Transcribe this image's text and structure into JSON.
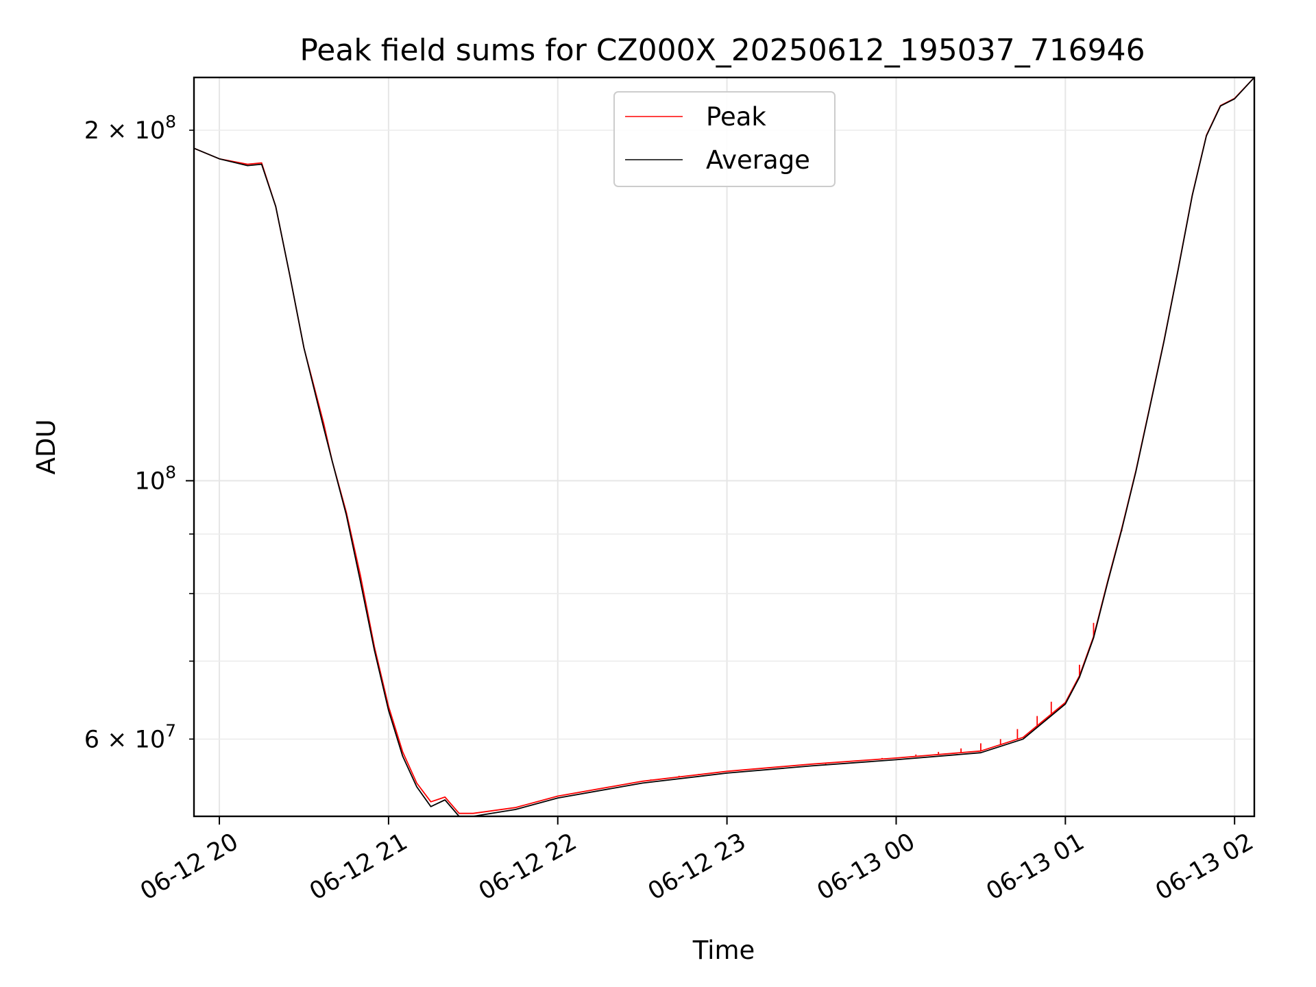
{
  "chart_data": {
    "type": "line",
    "title": "Peak field sums for CZ000X_20250612_195037_716946",
    "xlabel": "Time",
    "ylabel": "ADU",
    "yscale": "log",
    "grid": true,
    "legend_position": "top-center",
    "xlim": [
      "2025-06-12 19:51",
      "2025-06-13 02:07"
    ],
    "ylim": [
      51500000,
      222000000
    ],
    "x_ticks": [
      "06-12 20",
      "06-12 21",
      "06-12 22",
      "06-12 23",
      "06-13 00",
      "06-13 01",
      "06-13 02"
    ],
    "y_major_ticks": [
      {
        "value": 100000000,
        "label_base": "10",
        "label_exp": "8"
      }
    ],
    "y_minor_ticks": [
      {
        "value": 60000000,
        "label_base": "6 × 10",
        "label_exp": "7"
      },
      {
        "value": 200000000,
        "label_base": "2 × 10",
        "label_exp": "8"
      }
    ],
    "y_unlabeled_minor_ticks": [
      70000000,
      80000000,
      90000000
    ],
    "x": [
      "2025-06-12 19:51",
      "2025-06-12 20:00",
      "2025-06-12 20:10",
      "2025-06-12 20:15",
      "2025-06-12 20:20",
      "2025-06-12 20:25",
      "2025-06-12 20:30",
      "2025-06-12 20:37",
      "2025-06-12 20:40",
      "2025-06-12 20:45",
      "2025-06-12 20:50",
      "2025-06-12 20:55",
      "2025-06-12 21:00",
      "2025-06-12 21:05",
      "2025-06-12 21:10",
      "2025-06-12 21:15",
      "2025-06-12 21:20",
      "2025-06-12 21:25",
      "2025-06-12 21:30",
      "2025-06-12 21:45",
      "2025-06-12 22:00",
      "2025-06-12 22:30",
      "2025-06-12 23:00",
      "2025-06-12 23:30",
      "2025-06-13 00:00",
      "2025-06-13 00:30",
      "2025-06-13 00:45",
      "2025-06-13 01:00",
      "2025-06-13 01:05",
      "2025-06-13 01:10",
      "2025-06-13 01:15",
      "2025-06-13 01:20",
      "2025-06-13 01:25",
      "2025-06-13 01:30",
      "2025-06-13 01:35",
      "2025-06-13 01:40",
      "2025-06-13 01:45",
      "2025-06-13 01:50",
      "2025-06-13 01:55",
      "2025-06-13 02:00",
      "2025-06-13 02:07"
    ],
    "series": [
      {
        "name": "Peak",
        "color": "#ff0000",
        "values": [
          193000000,
          189000000,
          187000000,
          187500000,
          172000000,
          150000000,
          130000000,
          112000000,
          104000000,
          94000000,
          83000000,
          72000000,
          64000000,
          58500000,
          55000000,
          53000000,
          53500000,
          51800000,
          51800000,
          52400000,
          53600000,
          55200000,
          56300000,
          57100000,
          57800000,
          58600000,
          60200000,
          64500000,
          68000000,
          73500000,
          82000000,
          91000000,
          102000000,
          116000000,
          132000000,
          152000000,
          176000000,
          198000000,
          210000000,
          213000000,
          222000000
        ],
        "spikes": [
          [
            "2025-06-12 22:14",
            54300000
          ],
          [
            "2025-06-12 22:33",
            55400000
          ],
          [
            "2025-06-12 22:43",
            55800000
          ],
          [
            "2025-06-12 22:50",
            56000000
          ],
          [
            "2025-06-12 23:15",
            56700000
          ],
          [
            "2025-06-12 23:25",
            56900000
          ],
          [
            "2025-06-12 23:35",
            57100000
          ],
          [
            "2025-06-12 23:50",
            57600000
          ],
          [
            "2025-06-12 23:55",
            57800000
          ],
          [
            "2025-06-13 00:07",
            58200000
          ],
          [
            "2025-06-13 00:15",
            58500000
          ],
          [
            "2025-06-13 00:23",
            58900000
          ],
          [
            "2025-06-13 00:30",
            59500000
          ],
          [
            "2025-06-13 00:37",
            60000000
          ],
          [
            "2025-06-13 00:43",
            61200000
          ],
          [
            "2025-06-13 00:50",
            62800000
          ],
          [
            "2025-06-13 00:55",
            64600000
          ],
          [
            "2025-06-13 01:05",
            69500000
          ],
          [
            "2025-06-13 01:10",
            75500000
          ],
          [
            "2025-06-13 01:20",
            90500000
          ]
        ]
      },
      {
        "name": "Average",
        "color": "#000000",
        "values": [
          193000000,
          189000000,
          186500000,
          187000000,
          172000000,
          150000000,
          130000000,
          111000000,
          104000000,
          93500000,
          82000000,
          71500000,
          63500000,
          58000000,
          54600000,
          52500000,
          53200000,
          51500000,
          51500000,
          52200000,
          53400000,
          55000000,
          56100000,
          56900000,
          57600000,
          58400000,
          60000000,
          64300000,
          67800000,
          73300000,
          81800000,
          90800000,
          101800000,
          115800000,
          131800000,
          151800000,
          175800000,
          197800000,
          209800000,
          212800000,
          222000000
        ]
      }
    ]
  }
}
